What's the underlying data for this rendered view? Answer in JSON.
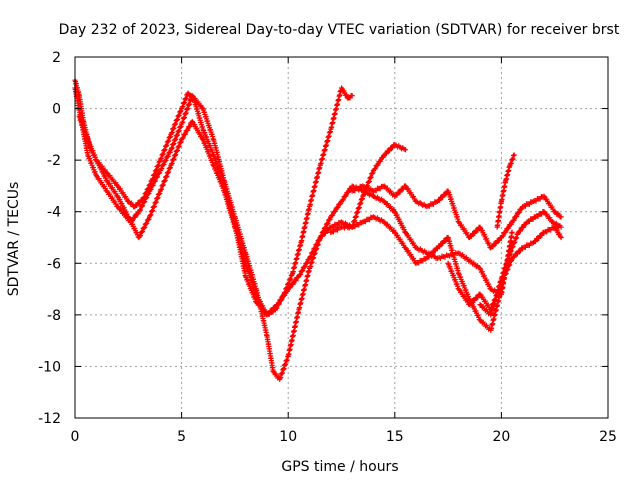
{
  "chart_data": {
    "type": "scatter",
    "title": "Day 232 of 2023, Sidereal Day-to-day VTEC variation (SDTVAR) for receiver brst",
    "xlabel": "GPS time / hours",
    "ylabel": "SDTVAR / TECUs",
    "xlim": [
      0,
      25
    ],
    "ylim": [
      -12,
      2
    ],
    "xticks": [
      0,
      5,
      10,
      15,
      20,
      25
    ],
    "yticks": [
      -12,
      -10,
      -8,
      -6,
      -4,
      -2,
      0,
      2
    ],
    "grid": true,
    "legend": "none",
    "marker": "+",
    "color": "#ff0000",
    "series": [
      {
        "x": [
          0.0,
          0.2,
          0.4,
          0.7,
          1.0,
          1.5,
          2.0,
          2.5,
          2.8,
          3.2,
          3.6,
          4.0,
          4.5,
          5.0,
          5.3,
          5.6,
          6.0,
          6.5,
          7.0,
          7.5,
          8.0,
          8.5,
          9.0,
          9.4,
          9.8,
          10.2,
          10.6,
          11.0,
          11.5,
          12.0,
          12.5,
          12.8,
          13.0
        ],
        "y": [
          1.1,
          0.5,
          -0.5,
          -1.5,
          -2.0,
          -2.5,
          -3.0,
          -3.6,
          -3.8,
          -3.5,
          -2.8,
          -2.0,
          -1.0,
          0.0,
          0.6,
          0.3,
          -0.8,
          -1.8,
          -3.0,
          -4.5,
          -6.5,
          -7.5,
          -8.0,
          -7.8,
          -7.2,
          -6.4,
          -5.2,
          -3.8,
          -2.2,
          -0.8,
          0.8,
          0.4,
          0.5
        ]
      },
      {
        "x": [
          0.0,
          0.3,
          0.6,
          1.0,
          1.5,
          2.0,
          2.6,
          3.0,
          3.5,
          4.0,
          4.5,
          5.0,
          5.5,
          6.0,
          6.5,
          7.0,
          7.5,
          8.0,
          8.5,
          9.0,
          9.3,
          9.6,
          10.0,
          10.5,
          11.0,
          11.5,
          12.0,
          12.5,
          13.0,
          13.5,
          14.0,
          14.5,
          15.0,
          15.5
        ],
        "y": [
          0.8,
          -0.5,
          -1.8,
          -2.6,
          -3.2,
          -3.8,
          -4.4,
          -4.0,
          -3.2,
          -2.4,
          -1.6,
          -0.6,
          0.5,
          0.0,
          -1.2,
          -2.8,
          -4.2,
          -5.6,
          -7.0,
          -8.8,
          -10.2,
          -10.5,
          -9.6,
          -7.8,
          -6.2,
          -5.0,
          -4.6,
          -4.4,
          -4.6,
          -3.4,
          -2.4,
          -1.8,
          -1.4,
          -1.6
        ]
      },
      {
        "x": [
          0.2,
          0.5,
          1.0,
          1.5,
          2.0,
          2.5,
          3.0,
          3.5,
          4.0,
          4.5,
          5.0,
          5.5,
          6.0,
          6.5,
          7.0,
          7.5,
          8.0,
          8.5,
          9.0,
          9.5,
          10.0,
          10.5,
          11.0,
          11.5,
          12.0,
          12.5,
          13.0,
          13.5,
          14.0,
          14.5,
          15.0,
          15.5,
          16.0,
          17.0,
          18.0,
          19.0,
          19.5,
          20.0,
          20.5
        ],
        "y": [
          -0.3,
          -1.0,
          -2.0,
          -2.8,
          -3.4,
          -4.2,
          -5.0,
          -4.2,
          -3.2,
          -2.2,
          -1.2,
          -0.5,
          -1.2,
          -2.2,
          -3.2,
          -4.6,
          -6.0,
          -7.2,
          -8.0,
          -7.6,
          -7.0,
          -6.5,
          -5.8,
          -5.0,
          -4.2,
          -3.6,
          -3.0,
          -3.2,
          -3.4,
          -3.6,
          -4.0,
          -4.8,
          -5.4,
          -5.8,
          -5.6,
          -6.2,
          -7.0,
          -7.2,
          -4.8
        ]
      },
      {
        "x": [
          12.0,
          12.5,
          13.0,
          13.5,
          14.0,
          14.5,
          15.0,
          15.5,
          16.0,
          16.5,
          17.0,
          17.5,
          18.0,
          18.5,
          19.0,
          19.5,
          20.0,
          20.5
        ],
        "y": [
          -4.8,
          -4.6,
          -4.6,
          -4.4,
          -4.2,
          -4.4,
          -4.8,
          -5.4,
          -6.0,
          -5.8,
          -5.4,
          -5.0,
          -6.4,
          -7.4,
          -8.2,
          -8.6,
          -7.0,
          -5.2
        ]
      },
      {
        "x": [
          13.0,
          13.5,
          14.0,
          14.5,
          15.0,
          15.5,
          16.0,
          16.5,
          17.0,
          17.5,
          18.0,
          18.5,
          19.0,
          19.5,
          20.0,
          20.5,
          21.0,
          21.5,
          22.0,
          22.5,
          22.8
        ],
        "y": [
          -3.2,
          -3.0,
          -3.2,
          -3.0,
          -3.4,
          -3.0,
          -3.6,
          -3.8,
          -3.6,
          -3.2,
          -4.4,
          -5.0,
          -4.6,
          -5.4,
          -5.0,
          -4.4,
          -3.8,
          -3.6,
          -3.4,
          -4.0,
          -4.2
        ]
      },
      {
        "x": [
          17.5,
          18.0,
          18.5,
          19.0,
          19.5,
          20.0,
          20.5,
          21.0,
          21.5,
          22.0,
          22.5,
          22.8
        ],
        "y": [
          -6.0,
          -7.0,
          -7.6,
          -7.2,
          -7.8,
          -6.8,
          -5.8,
          -5.4,
          -5.2,
          -4.8,
          -4.6,
          -5.0
        ]
      },
      {
        "x": [
          19.0,
          19.5,
          20.0,
          20.4,
          20.8,
          21.2,
          21.6,
          22.0,
          22.4,
          22.8
        ],
        "y": [
          -7.6,
          -8.0,
          -6.6,
          -5.6,
          -4.8,
          -4.4,
          -4.2,
          -4.0,
          -4.4,
          -4.6
        ]
      },
      {
        "x": [
          19.8,
          20.0,
          20.2,
          20.4,
          20.6
        ],
        "y": [
          -4.6,
          -3.6,
          -2.8,
          -2.2,
          -1.8
        ]
      }
    ]
  }
}
